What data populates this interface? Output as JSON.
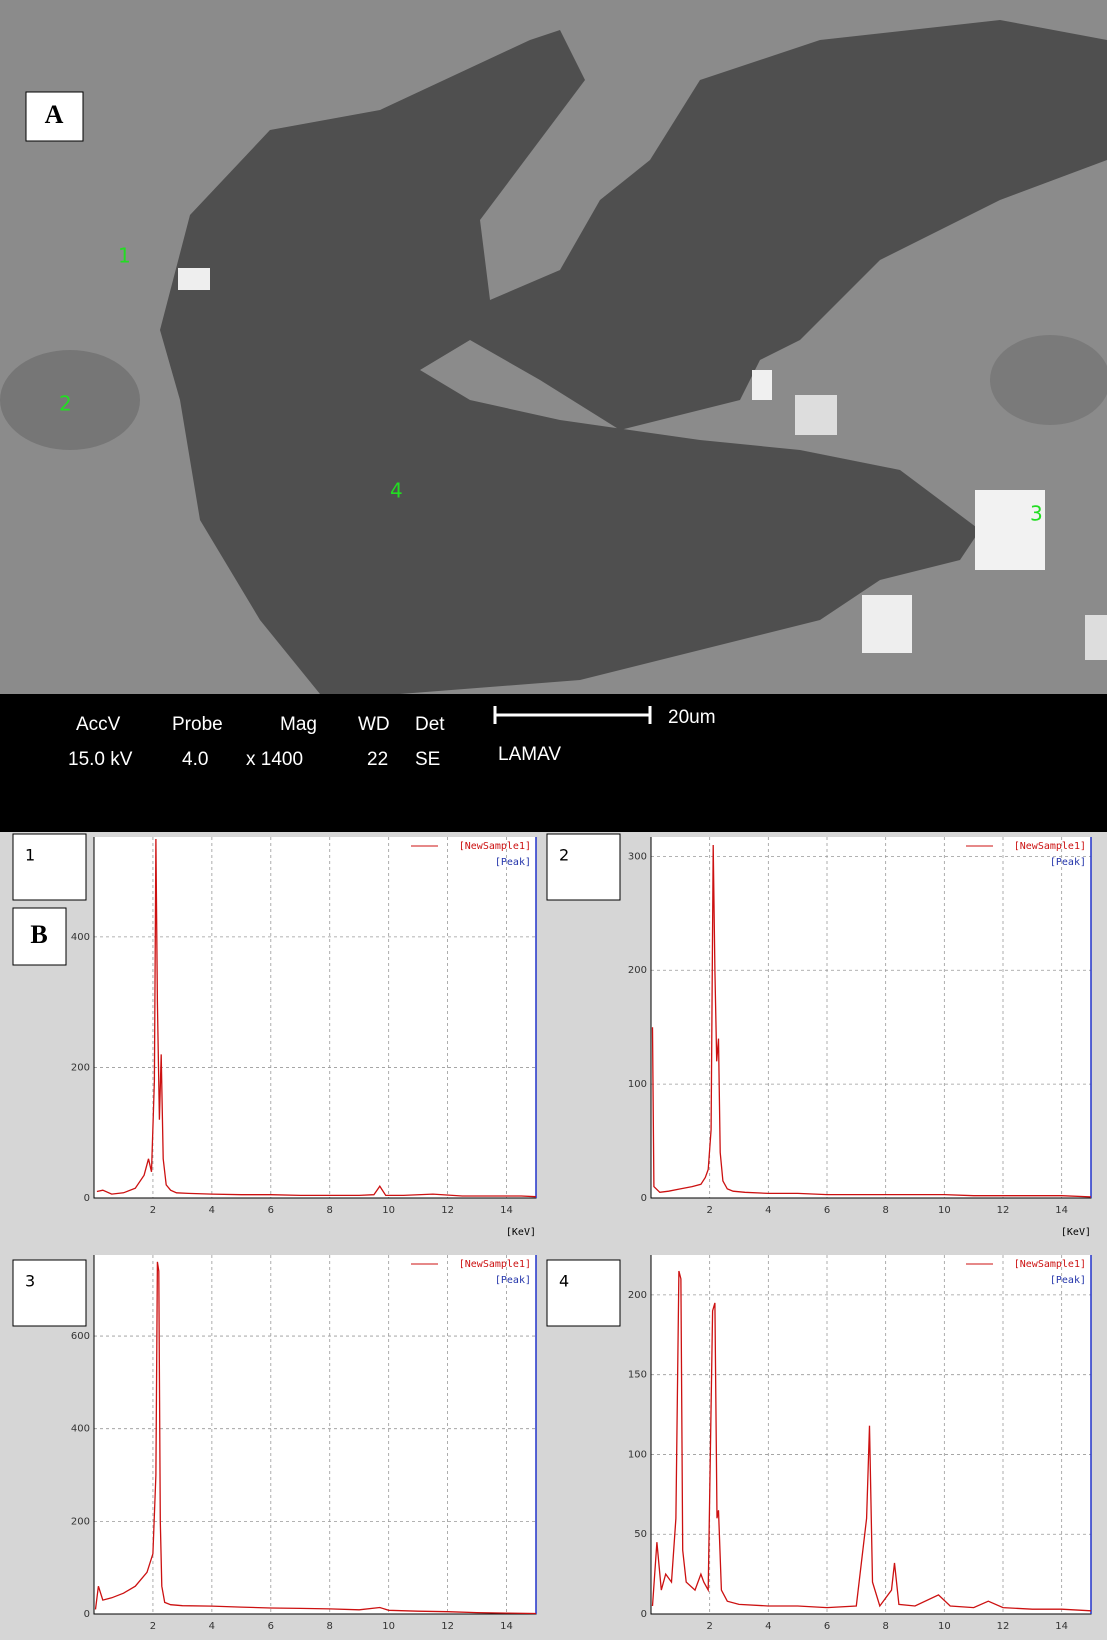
{
  "panel_a": {
    "label": "A",
    "points": [
      "1",
      "2",
      "3",
      "4"
    ],
    "info": {
      "accv_label": "AccV",
      "accv": "15.0 kV",
      "probe_label": "Probe",
      "probe": "4.0",
      "mag_label": "Mag",
      "mag": "x 1400",
      "wd_label": "WD",
      "wd": "22",
      "det_label": "Det",
      "det": "SE",
      "scale": "20um",
      "lab": "LAMAV"
    }
  },
  "panel_b_label": "B",
  "chart_data": [
    {
      "type": "line",
      "panel_label": "1",
      "x_label": "[KeV]",
      "peak_legend": "[Peak]",
      "x": [
        0.1,
        0.3,
        0.6,
        1.0,
        1.4,
        1.7,
        1.85,
        1.95,
        2.05,
        2.1,
        2.15,
        2.22,
        2.28,
        2.35,
        2.45,
        2.6,
        2.8,
        3.2,
        4,
        5,
        6,
        7,
        8,
        9,
        9.5,
        9.7,
        9.9,
        10.5,
        11.5,
        12.5,
        13.5,
        14.5,
        15
      ],
      "series": [
        {
          "name": "[NewSample1]",
          "color": "#cc1111",
          "values": [
            10,
            12,
            6,
            8,
            15,
            35,
            60,
            40,
            180,
            550,
            300,
            120,
            220,
            60,
            20,
            12,
            8,
            7,
            6,
            5,
            5,
            4,
            4,
            4,
            5,
            18,
            4,
            4,
            6,
            3,
            3,
            3,
            2
          ]
        }
      ],
      "xlim": [
        0,
        15
      ],
      "xticks": [
        2,
        4,
        6,
        8,
        10,
        12,
        14
      ],
      "ylim": [
        0,
        553
      ],
      "yticks": [
        0,
        200,
        400
      ],
      "grid": true
    },
    {
      "type": "line",
      "panel_label": "2",
      "x_label": "[KeV]",
      "peak_legend": "[Peak]",
      "x": [
        0.05,
        0.1,
        0.3,
        0.6,
        1.0,
        1.4,
        1.7,
        1.85,
        1.95,
        2.05,
        2.12,
        2.18,
        2.24,
        2.3,
        2.36,
        2.45,
        2.6,
        2.8,
        3.2,
        4,
        5,
        6,
        7,
        8,
        9,
        10,
        11,
        12,
        13,
        14,
        15
      ],
      "series": [
        {
          "name": "[NewSample1]",
          "color": "#cc1111",
          "values": [
            150,
            10,
            5,
            6,
            8,
            10,
            12,
            18,
            25,
            60,
            310,
            200,
            120,
            140,
            40,
            15,
            8,
            6,
            5,
            4,
            4,
            3,
            3,
            3,
            3,
            3,
            2,
            2,
            2,
            2,
            1
          ]
        }
      ],
      "xlim": [
        0,
        15
      ],
      "xticks": [
        2,
        4,
        6,
        8,
        10,
        12,
        14
      ],
      "ylim": [
        0,
        317
      ],
      "yticks": [
        0,
        100,
        200,
        300
      ],
      "grid": true
    },
    {
      "type": "line",
      "panel_label": "3",
      "peak_legend": "[Peak]",
      "x": [
        0.05,
        0.15,
        0.3,
        0.6,
        1.0,
        1.4,
        1.8,
        2.0,
        2.1,
        2.15,
        2.2,
        2.25,
        2.3,
        2.4,
        2.6,
        3,
        4,
        5,
        6,
        7,
        8,
        9,
        9.7,
        10,
        11,
        12,
        13,
        14,
        15
      ],
      "series": [
        {
          "name": "[NewSample1]",
          "color": "#cc1111",
          "values": [
            10,
            60,
            30,
            35,
            45,
            60,
            90,
            130,
            300,
            760,
            740,
            200,
            60,
            25,
            20,
            18,
            17,
            15,
            13,
            12,
            11,
            9,
            14,
            8,
            6,
            5,
            3,
            2,
            1
          ]
        }
      ],
      "xlim": [
        0,
        15
      ],
      "xticks": [
        2,
        4,
        6,
        8,
        10,
        12,
        14
      ],
      "ylim": [
        0,
        775
      ],
      "yticks": [
        0,
        200,
        400,
        600
      ],
      "grid": true
    },
    {
      "type": "line",
      "panel_label": "4",
      "peak_legend": "[Peak]",
      "x": [
        0.05,
        0.2,
        0.35,
        0.5,
        0.7,
        0.85,
        0.95,
        1.02,
        1.08,
        1.2,
        1.5,
        1.7,
        1.8,
        1.95,
        2.1,
        2.18,
        2.25,
        2.3,
        2.4,
        2.6,
        3,
        4,
        5,
        6,
        7,
        7.35,
        7.45,
        7.55,
        7.8,
        8.2,
        8.3,
        8.45,
        9,
        9.8,
        10.2,
        11,
        11.5,
        12,
        13,
        14,
        15
      ],
      "series": [
        {
          "name": "[NewSample1]",
          "color": "#cc1111",
          "values": [
            5,
            45,
            15,
            25,
            20,
            60,
            215,
            210,
            40,
            20,
            15,
            25,
            20,
            15,
            190,
            195,
            60,
            65,
            15,
            8,
            6,
            5,
            5,
            4,
            5,
            60,
            118,
            20,
            5,
            15,
            32,
            6,
            5,
            12,
            5,
            4,
            8,
            4,
            3,
            3,
            2
          ]
        }
      ],
      "xlim": [
        0,
        15
      ],
      "xticks": [
        2,
        4,
        6,
        8,
        10,
        12,
        14
      ],
      "ylim": [
        0,
        225
      ],
      "yticks": [
        0,
        50,
        100,
        150,
        200
      ],
      "grid": true
    }
  ]
}
